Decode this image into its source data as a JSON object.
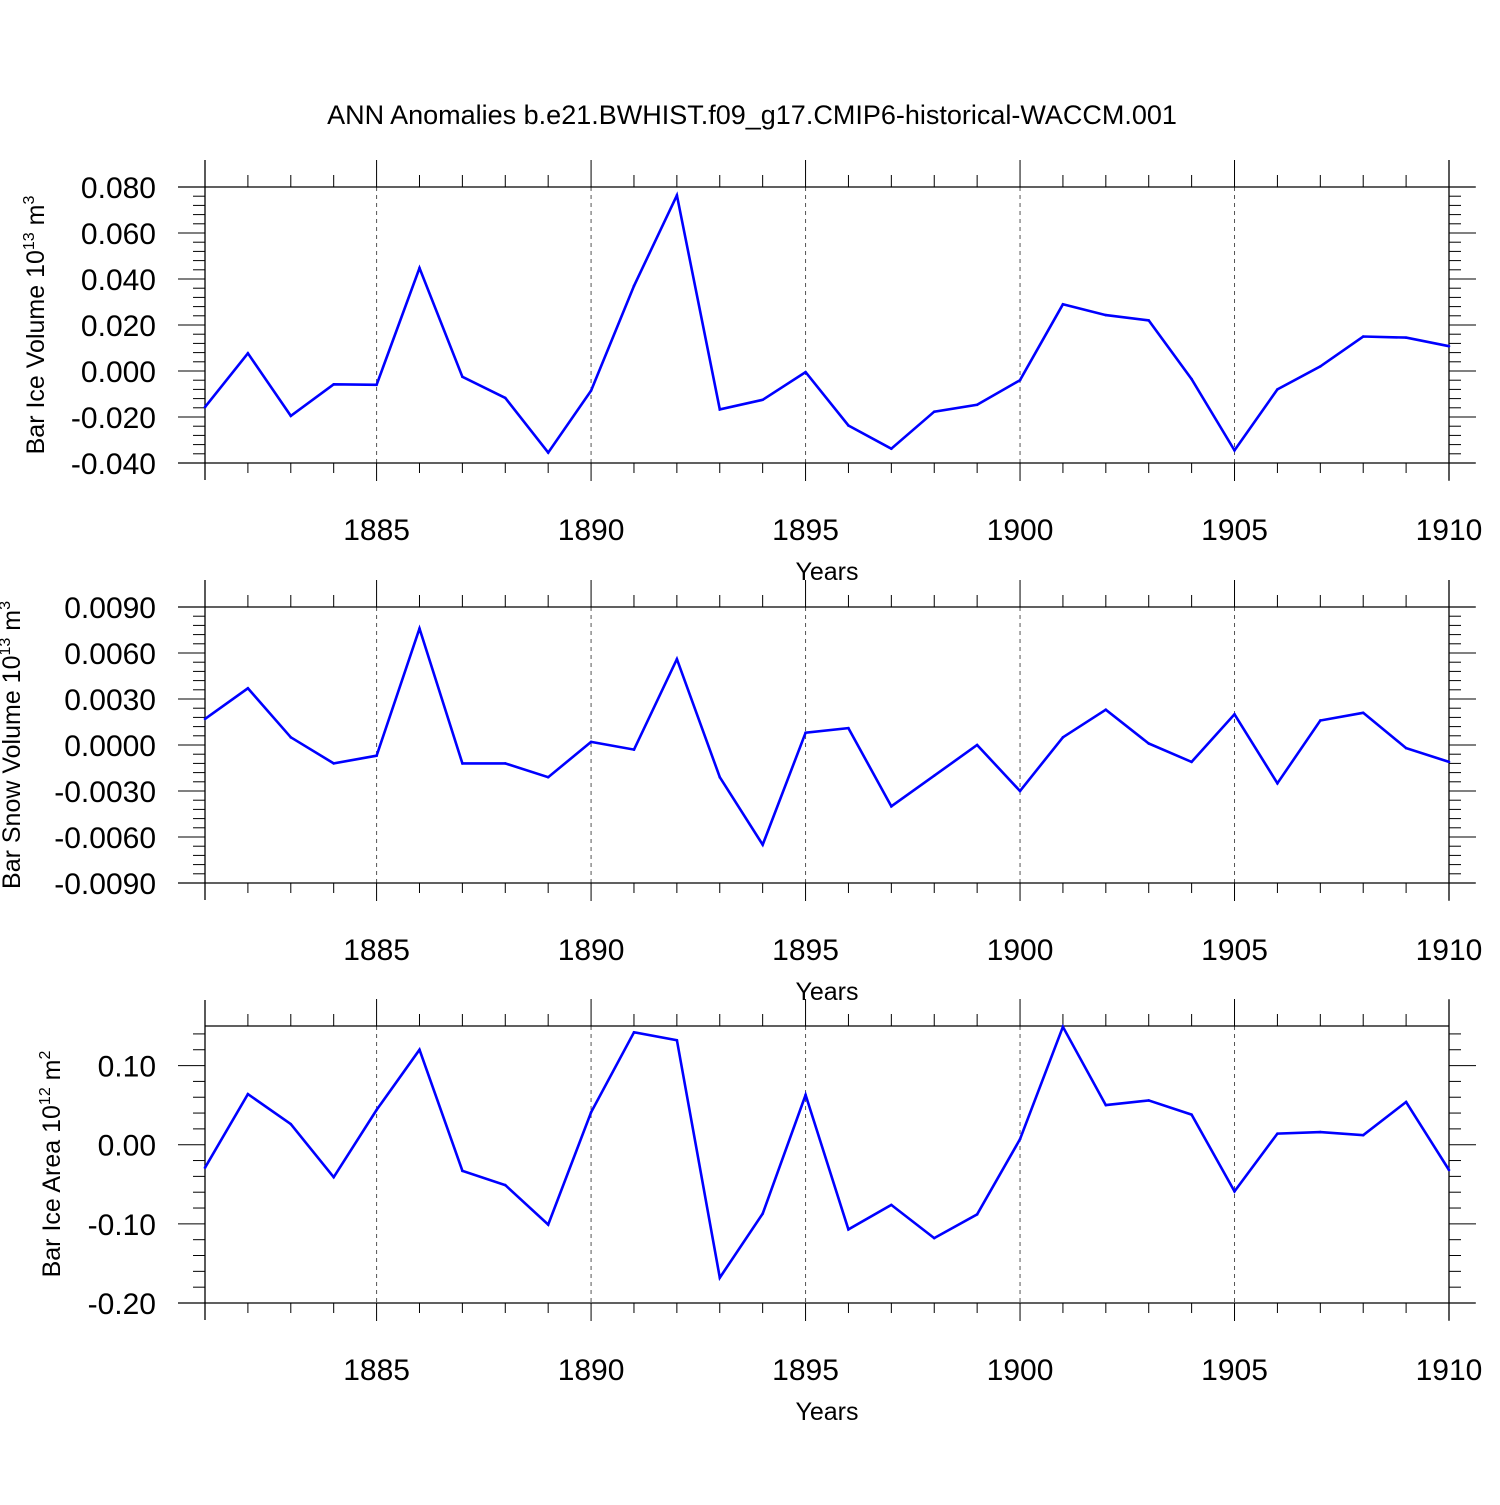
{
  "title": "ANN Anomalies b.e21.BWHIST.f09_g17.CMIP6-historical-WACCM.001",
  "colors": {
    "line": "#0000ff",
    "axis": "#000000",
    "gridline": "#555555"
  },
  "chart_data": [
    {
      "type": "line",
      "ylabel_main": "Bar Ice Volume 10",
      "ylabel_exp": "13",
      "ylabel_unit": " m",
      "ylabel_unit_exp": "3",
      "xlabel": "Years",
      "xlim": [
        1881,
        1910
      ],
      "ylim": [
        -0.04,
        0.08
      ],
      "yticks": [
        -0.04,
        -0.02,
        0.0,
        0.02,
        0.04,
        0.06,
        0.08
      ],
      "ytick_labels": [
        "-0.040",
        "-0.020",
        "0.000",
        "0.020",
        "0.040",
        "0.060",
        "0.080"
      ],
      "xticks": [
        1885,
        1890,
        1895,
        1900,
        1905,
        1910
      ],
      "xtick_labels": [
        "1885",
        "1890",
        "1895",
        "1900",
        "1905",
        "1910"
      ],
      "x": [
        1881,
        1882,
        1883,
        1884,
        1885,
        1886,
        1887,
        1888,
        1889,
        1890,
        1891,
        1892,
        1893,
        1894,
        1895,
        1896,
        1897,
        1898,
        1899,
        1900,
        1901,
        1902,
        1903,
        1904,
        1905,
        1906,
        1907,
        1908,
        1909,
        1910
      ],
      "values": [
        -0.0157,
        0.0077,
        -0.0195,
        -0.0058,
        -0.006,
        0.0448,
        -0.0025,
        -0.0117,
        -0.0355,
        -0.0085,
        0.037,
        0.0764,
        -0.0167,
        -0.0125,
        -0.0005,
        -0.0237,
        -0.0338,
        -0.0177,
        -0.0147,
        -0.004,
        0.029,
        0.0243,
        0.022,
        -0.0035,
        -0.0345,
        -0.008,
        0.002,
        0.015,
        0.0145,
        0.0108
      ]
    },
    {
      "type": "line",
      "ylabel_main": "Bar Snow Volume 10",
      "ylabel_exp": "13",
      "ylabel_unit": " m",
      "ylabel_unit_exp": "3",
      "xlabel": "Years",
      "xlim": [
        1881,
        1910
      ],
      "ylim": [
        -0.009,
        0.009
      ],
      "yticks": [
        -0.009,
        -0.006,
        -0.003,
        0.0,
        0.003,
        0.006,
        0.009
      ],
      "ytick_labels": [
        "-0.0090",
        "-0.0060",
        "-0.0030",
        "0.0000",
        "0.0030",
        "0.0060",
        "0.0090"
      ],
      "xticks": [
        1885,
        1890,
        1895,
        1900,
        1905,
        1910
      ],
      "xtick_labels": [
        "1885",
        "1890",
        "1895",
        "1900",
        "1905",
        "1910"
      ],
      "x": [
        1881,
        1882,
        1883,
        1884,
        1885,
        1886,
        1887,
        1888,
        1889,
        1890,
        1891,
        1892,
        1893,
        1894,
        1895,
        1896,
        1897,
        1898,
        1899,
        1900,
        1901,
        1902,
        1903,
        1904,
        1905,
        1906,
        1907,
        1908,
        1909,
        1910
      ],
      "values": [
        0.0017,
        0.0037,
        0.0005,
        -0.0012,
        -0.0007,
        0.0076,
        -0.0012,
        -0.0012,
        -0.0021,
        0.0002,
        -0.0003,
        0.0056,
        -0.0021,
        -0.0065,
        0.0008,
        0.0011,
        -0.004,
        -0.002,
        0.0,
        -0.003,
        0.0005,
        0.0023,
        0.0001,
        -0.0011,
        0.002,
        -0.0025,
        0.0016,
        0.0021,
        -0.0002,
        -0.0011
      ]
    },
    {
      "type": "line",
      "ylabel_main": "Bar Ice Area 10",
      "ylabel_exp": "12",
      "ylabel_unit": " m",
      "ylabel_unit_exp": "2",
      "xlabel": "Years",
      "xlim": [
        1881,
        1910
      ],
      "ylim": [
        -0.2,
        0.15
      ],
      "yticks": [
        -0.2,
        -0.1,
        0.0,
        0.1
      ],
      "ytick_labels": [
        "-0.20",
        "-0.10",
        "0.00",
        "0.10"
      ],
      "xticks": [
        1885,
        1890,
        1895,
        1900,
        1905,
        1910
      ],
      "xtick_labels": [
        "1885",
        "1890",
        "1895",
        "1900",
        "1905",
        "1910"
      ],
      "x": [
        1881,
        1882,
        1883,
        1884,
        1885,
        1886,
        1887,
        1888,
        1889,
        1890,
        1891,
        1892,
        1893,
        1894,
        1895,
        1896,
        1897,
        1898,
        1899,
        1900,
        1901,
        1902,
        1903,
        1904,
        1905,
        1906,
        1907,
        1908,
        1909,
        1910
      ],
      "values": [
        -0.029,
        0.064,
        0.026,
        -0.041,
        0.044,
        0.12,
        -0.033,
        -0.051,
        -0.101,
        0.041,
        0.142,
        0.132,
        -0.168,
        -0.087,
        0.063,
        -0.107,
        -0.076,
        -0.118,
        -0.088,
        0.007,
        0.149,
        0.05,
        0.056,
        0.038,
        -0.059,
        0.014,
        0.016,
        0.012,
        0.054,
        -0.032
      ]
    }
  ]
}
